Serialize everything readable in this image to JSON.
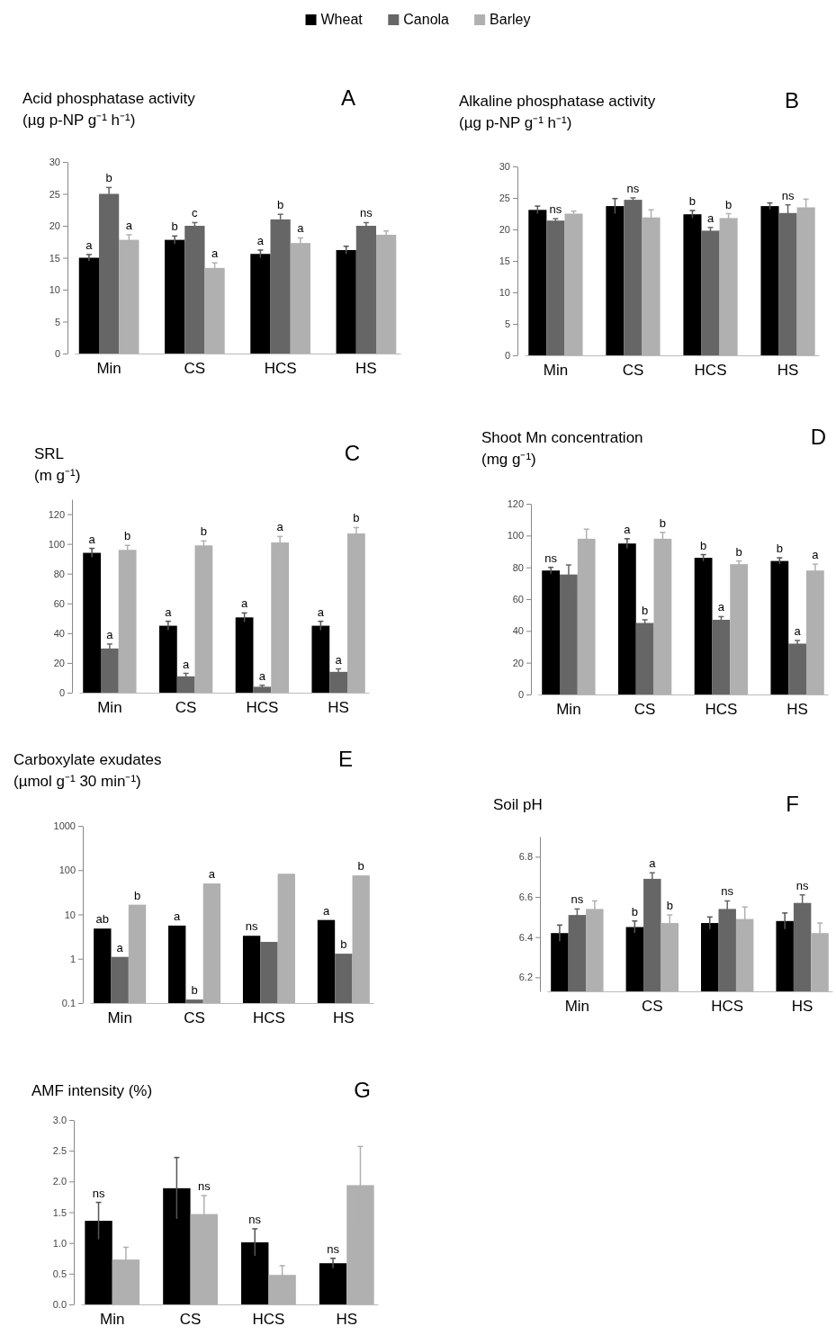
{
  "chart_data": [
    {
      "type": "bar",
      "title": "Acid phosphatase activity",
      "subtitle": "(µg p-NP g⁻¹ h⁻¹)",
      "legend": "top",
      "categories": [
        "Min",
        "CS",
        "HCS",
        "HS"
      ],
      "ylim": [
        0,
        30
      ],
      "yticks": [
        0,
        5,
        10,
        15,
        20,
        25,
        30
      ],
      "annotations": [
        "A"
      ],
      "series": [
        {
          "name": "Wheat",
          "color": "#000000",
          "values": [
            15,
            17.8,
            15.6,
            16.2
          ],
          "errors": [
            0.5,
            0.6,
            0.6,
            0.6
          ],
          "value_labels": [
            "a",
            "b",
            "a",
            null
          ]
        },
        {
          "name": "Canola",
          "color": "#666666",
          "values": [
            25,
            20,
            21,
            20
          ],
          "errors": [
            1,
            0.5,
            0.8,
            0.5
          ],
          "value_labels": [
            "b",
            "c",
            "b",
            "ns"
          ]
        },
        {
          "name": "Barley",
          "color": "#b0b0b0",
          "values": [
            17.8,
            13.4,
            17.3,
            18.6
          ],
          "errors": [
            0.8,
            0.8,
            0.8,
            0.6
          ],
          "value_labels": [
            "a",
            "a",
            "a",
            null
          ]
        }
      ]
    },
    {
      "type": "bar",
      "title": "Alkaline phosphatase activity",
      "subtitle": "(µg p-NP g⁻¹ h⁻¹)",
      "categories": [
        "Min",
        "CS",
        "HCS",
        "HS"
      ],
      "ylim": [
        0,
        30
      ],
      "yticks": [
        0,
        5,
        10,
        15,
        20,
        25,
        30
      ],
      "annotations": [
        "B"
      ],
      "series": [
        {
          "color": "#000000",
          "values": [
            23.1,
            23.7,
            22.4,
            23.7
          ],
          "errors": [
            0.6,
            1.2,
            0.6,
            0.5
          ],
          "value_labels": [
            null,
            null,
            "b",
            null
          ]
        },
        {
          "color": "#666666",
          "values": [
            21.4,
            24.7,
            19.8,
            22.6
          ],
          "errors": [
            0.3,
            0.3,
            0.5,
            1.3
          ],
          "value_labels": [
            "ns",
            "ns",
            "a",
            "ns"
          ]
        },
        {
          "color": "#b0b0b0",
          "values": [
            22.5,
            21.9,
            21.8,
            23.5
          ],
          "errors": [
            0.4,
            1.2,
            0.7,
            1.3
          ],
          "value_labels": [
            null,
            null,
            "b",
            null
          ]
        }
      ]
    },
    {
      "type": "bar",
      "title": "SRL",
      "subtitle": "(m g⁻¹)",
      "categories": [
        "Min",
        "CS",
        "HCS",
        "HS"
      ],
      "ylim": [
        0,
        130
      ],
      "yticks": [
        0,
        20,
        40,
        60,
        80,
        100,
        120
      ],
      "annotations": [
        "C"
      ],
      "series": [
        {
          "color": "#000000",
          "values": [
            94,
            45,
            50.6,
            45
          ],
          "errors": [
            3,
            3,
            3,
            3
          ],
          "value_labels": [
            "a",
            "a",
            "a",
            "a"
          ]
        },
        {
          "color": "#666666",
          "values": [
            29.7,
            11,
            4,
            14
          ],
          "errors": [
            3,
            2,
            1,
            2
          ],
          "value_labels": [
            "a",
            "a",
            "a",
            "a"
          ]
        },
        {
          "color": "#b0b0b0",
          "values": [
            96,
            99,
            101,
            107
          ],
          "errors": [
            3,
            3,
            4,
            4
          ],
          "value_labels": [
            "b",
            "b",
            "a",
            "b"
          ]
        }
      ]
    },
    {
      "type": "bar",
      "title": "Shoot Mn concentration",
      "subtitle": "(mg g⁻¹)",
      "categories": [
        "Min",
        "CS",
        "HCS",
        "HS"
      ],
      "ylim": [
        0,
        120
      ],
      "yticks": [
        0,
        20,
        40,
        60,
        80,
        100,
        120
      ],
      "annotations": [
        "D"
      ],
      "series": [
        {
          "color": "#000000",
          "values": [
            78,
            95,
            86,
            84
          ],
          "errors": [
            2,
            3,
            2,
            2
          ],
          "value_labels": [
            "ns",
            "a",
            "b",
            "b"
          ]
        },
        {
          "color": "#666666",
          "values": [
            75.5,
            45,
            47,
            32
          ],
          "errors": [
            6,
            2,
            2,
            2
          ],
          "value_labels": [
            null,
            "b",
            "a",
            "a"
          ]
        },
        {
          "color": "#b0b0b0",
          "values": [
            98,
            98,
            82,
            78
          ],
          "errors": [
            6,
            4,
            2,
            4
          ],
          "value_labels": [
            null,
            "b",
            "b",
            "a"
          ]
        }
      ]
    },
    {
      "type": "bar",
      "title": "Carboxylate exudates",
      "subtitle": "(µmol g⁻¹ 30 min⁻¹)",
      "categories": [
        "Min",
        "CS",
        "HCS",
        "HS"
      ],
      "log": true,
      "ylim": [
        0.1,
        1000
      ],
      "yticks": [
        0.1,
        1,
        10,
        100,
        1000
      ],
      "annotations": [
        "E"
      ],
      "series": [
        {
          "color": "#000000",
          "values": [
            4.8,
            5.6,
            3.3,
            7.5
          ],
          "value_labels": [
            "ab",
            "a",
            "ns",
            "a"
          ]
        },
        {
          "color": "#666666",
          "values": [
            1.1,
            0.12,
            2.4,
            1.3
          ],
          "value_labels": [
            "a",
            "b",
            null,
            "b"
          ]
        },
        {
          "color": "#b0b0b0",
          "values": [
            16.6,
            50,
            83,
            76
          ],
          "value_labels": [
            "b",
            "a",
            null,
            "b"
          ]
        }
      ]
    },
    {
      "type": "bar",
      "title": "Soil pH",
      "categories": [
        "Min",
        "CS",
        "HCS",
        "HS"
      ],
      "ylim": [
        6.13,
        6.9
      ],
      "yticks": [
        6.2,
        6.4,
        6.6,
        6.8
      ],
      "annotations": [
        "F"
      ],
      "series": [
        {
          "color": "#000000",
          "values": [
            6.42,
            6.45,
            6.47,
            6.48
          ],
          "errors": [
            0.04,
            0.03,
            0.03,
            0.04
          ],
          "value_labels": [
            null,
            "b",
            null,
            null
          ]
        },
        {
          "color": "#666666",
          "values": [
            6.51,
            6.69,
            6.54,
            6.57
          ],
          "errors": [
            0.03,
            0.03,
            0.04,
            0.04
          ],
          "value_labels": [
            "ns",
            "a",
            "ns",
            "ns"
          ]
        },
        {
          "color": "#b0b0b0",
          "values": [
            6.54,
            6.47,
            6.49,
            6.42
          ],
          "errors": [
            0.04,
            0.04,
            0.06,
            0.05
          ],
          "value_labels": [
            null,
            "b",
            null,
            null
          ]
        }
      ]
    },
    {
      "type": "bar",
      "title": "AMF intensity (%)",
      "categories": [
        "Min",
        "CS",
        "HCS",
        "HS"
      ],
      "ylim": [
        0,
        3
      ],
      "yticks": [
        {
          "value": 0,
          "label": "0.0"
        },
        {
          "value": 0.5,
          "label": "0.5"
        },
        {
          "value": 1,
          "label": "1.0"
        },
        {
          "value": 1.5,
          "label": "1.5"
        },
        {
          "value": 2,
          "label": "2.0"
        },
        {
          "value": 2.5,
          "label": "2.5"
        },
        {
          "value": 3,
          "label": "3.0"
        }
      ],
      "annotations": [
        "G"
      ],
      "series": [
        {
          "color": "#000000",
          "values": [
            1.36,
            1.89,
            1.01,
            0.67
          ],
          "errors": [
            0.3,
            0.5,
            0.22,
            0.08
          ],
          "value_labels": [
            "ns",
            null,
            "ns",
            "ns"
          ]
        },
        {
          "color": "#b0b0b0",
          "values": [
            0.73,
            1.47,
            0.48,
            1.94
          ],
          "errors": [
            0.2,
            0.3,
            0.15,
            0.63
          ],
          "value_labels": [
            null,
            "ns",
            null,
            null
          ]
        }
      ]
    }
  ]
}
